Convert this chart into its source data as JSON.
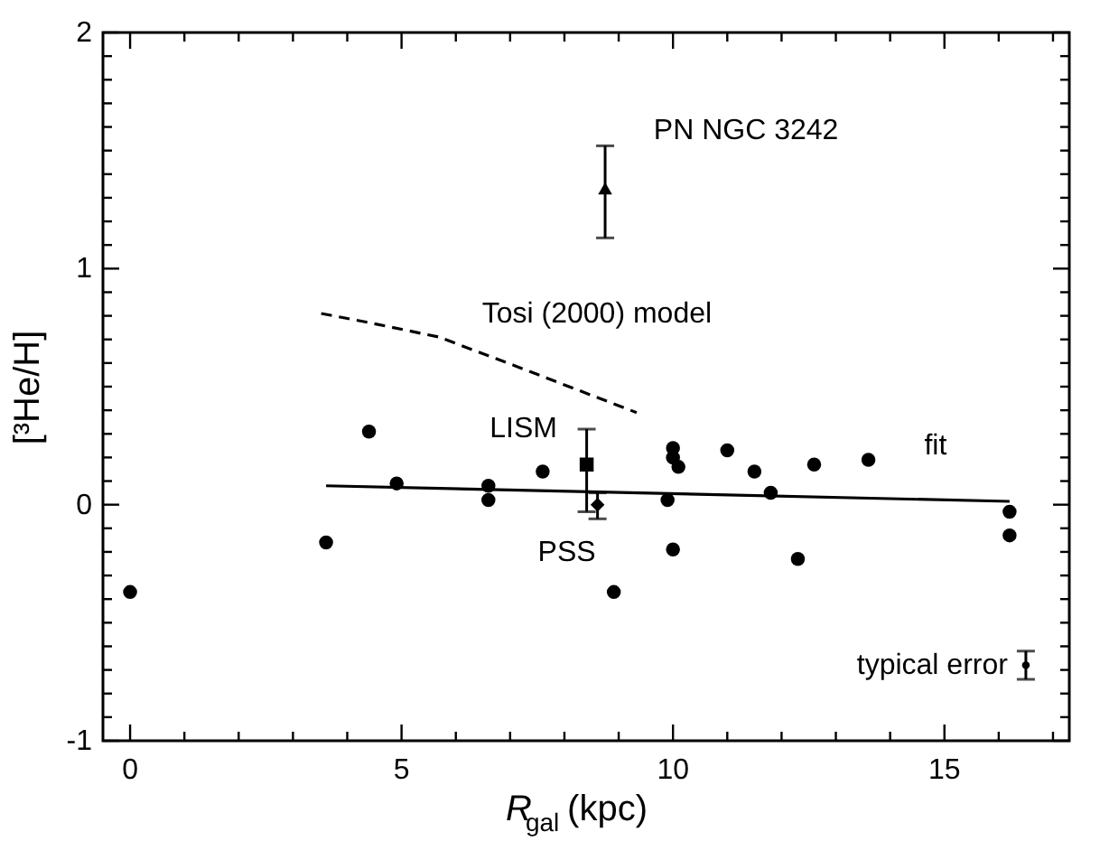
{
  "chart_data": {
    "type": "scatter",
    "xlabel": "R$_{gal}$(kpc)",
    "ylabel": "[³He/H]",
    "xlim": [
      -0.5,
      17.3
    ],
    "ylim": [
      -1,
      2
    ],
    "grid": false,
    "xticks": [
      0,
      {
        "value": 1,
        "label": null
      },
      {
        "value": 2,
        "label": null
      },
      {
        "value": 3,
        "label": null
      },
      {
        "value": 4,
        "label": null
      },
      5,
      {
        "value": 6,
        "label": null
      },
      {
        "value": 7,
        "label": null
      },
      {
        "value": 8,
        "label": null
      },
      {
        "value": 9,
        "label": null
      },
      10,
      {
        "value": 11,
        "label": null
      },
      {
        "value": 12,
        "label": null
      },
      {
        "value": 13,
        "label": null
      },
      {
        "value": 14,
        "label": null
      },
      15,
      {
        "value": 16,
        "label": null
      },
      {
        "value": 17,
        "label": null
      }
    ],
    "yticks": [
      -1,
      {
        "value": -0.9,
        "label": null
      },
      {
        "value": -0.8,
        "label": null
      },
      {
        "value": -0.7,
        "label": null
      },
      {
        "value": -0.6,
        "label": null
      },
      {
        "value": -0.5,
        "label": null
      },
      {
        "value": -0.4,
        "label": null
      },
      {
        "value": -0.3,
        "label": null
      },
      {
        "value": -0.2,
        "label": null
      },
      {
        "value": -0.1,
        "label": null
      },
      0,
      {
        "value": 0.1,
        "label": null
      },
      {
        "value": 0.2,
        "label": null
      },
      {
        "value": 0.3,
        "label": null
      },
      {
        "value": 0.4,
        "label": null
      },
      {
        "value": 0.5,
        "label": null
      },
      {
        "value": 0.6,
        "label": null
      },
      {
        "value": 0.7,
        "label": null
      },
      {
        "value": 0.8,
        "label": null
      },
      {
        "value": 0.9,
        "label": null
      },
      1,
      {
        "value": 1.1,
        "label": null
      },
      {
        "value": 1.2,
        "label": null
      },
      {
        "value": 1.3,
        "label": null
      },
      {
        "value": 1.4,
        "label": null
      },
      {
        "value": 1.5,
        "label": null
      },
      {
        "value": 1.6,
        "label": null
      },
      {
        "value": 1.7,
        "label": null
      },
      {
        "value": 1.8,
        "label": null
      },
      {
        "value": 1.9,
        "label": null
      },
      2
    ],
    "series": [
      {
        "marker": "circle",
        "color": "#000000",
        "x": [
          0,
          3.61,
          4.4,
          4.91,
          6.6,
          6.6,
          7.6,
          8.91,
          9.9,
          10.0,
          10.0,
          10.1,
          10.0,
          11.0,
          11.5,
          11.8,
          12.3,
          12.6,
          13.6,
          16.2,
          16.2
        ],
        "values": [
          -0.37,
          -0.16,
          0.31,
          0.09,
          0.08,
          0.02,
          0.14,
          -0.37,
          0.02,
          0.24,
          0.2,
          0.16,
          -0.19,
          0.23,
          0.14,
          0.05,
          -0.23,
          0.17,
          0.19,
          -0.03,
          -0.13
        ]
      },
      {
        "type": "scatter",
        "name": "LISM",
        "marker": "square",
        "color": "#000000",
        "x": [
          8.41
        ],
        "values": [
          0.17
        ],
        "errors": [
          [
            -0.03,
            0.32
          ]
        ]
      },
      {
        "type": "scatter",
        "name": "PSS",
        "marker": "diamond",
        "color": "#000000",
        "x": [
          8.61
        ],
        "values": [
          0.0
        ],
        "errors": [
          [
            -0.06,
            0.05
          ]
        ]
      },
      {
        "type": "scatter",
        "name": "PN NGC 3242",
        "marker": "triangle",
        "color": "#000000",
        "x": [
          8.75
        ],
        "values": [
          1.34
        ],
        "errors": [
          [
            1.13,
            1.52
          ]
        ]
      },
      {
        "type": "scatter",
        "name": "typical error",
        "marker": "circle",
        "color": "#000000",
        "x": [
          16.5
        ],
        "values": [
          -0.68
        ],
        "errors": [
          [
            -0.74,
            -0.62
          ]
        ]
      },
      {
        "type": "line",
        "name": "fit",
        "line_style": "solid",
        "color": "#000000",
        "x": [
          3.61,
          16.2
        ],
        "values": [
          0.08,
          0.014
        ]
      },
      {
        "type": "line",
        "name": "Tosi (2000) model",
        "line_style": "dashed",
        "color": "#000000",
        "x": [
          3.52,
          4.43,
          5.69,
          7.07,
          9.33
        ],
        "values": [
          0.81,
          0.77,
          0.71,
          0.59,
          0.39
        ]
      }
    ]
  }
}
